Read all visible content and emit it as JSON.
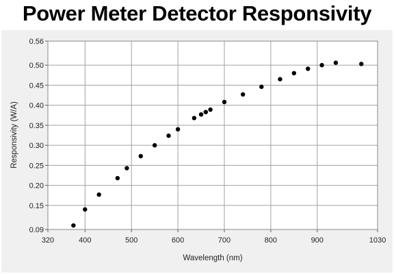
{
  "chart_data": {
    "type": "scatter",
    "title": "Power Meter Detector Responsivity",
    "xlabel": "Wavelength (nm)",
    "ylabel": "Responsivity (W/A)",
    "xlim": [
      320,
      1030
    ],
    "ylim": [
      0.09,
      0.56
    ],
    "xticks": [
      320,
      400,
      500,
      600,
      700,
      800,
      900,
      1030
    ],
    "yticks": [
      0.09,
      0.15,
      0.2,
      0.25,
      0.3,
      0.35,
      0.4,
      0.45,
      0.5,
      0.56
    ],
    "ytick_labels": [
      "0.09",
      "0.15",
      "0.20",
      "0.25",
      "0.30",
      "0.35",
      "0.40",
      "0.45",
      "0.50",
      "0.56"
    ],
    "grid": true,
    "colors": {
      "points": "#000000",
      "grid": "#a0a0a0",
      "panel": "#f0f0f0",
      "plot_bg": "#ffffff"
    },
    "points": [
      {
        "x": 375,
        "y": 0.1
      },
      {
        "x": 400,
        "y": 0.14
      },
      {
        "x": 430,
        "y": 0.177
      },
      {
        "x": 470,
        "y": 0.218
      },
      {
        "x": 490,
        "y": 0.243
      },
      {
        "x": 520,
        "y": 0.273
      },
      {
        "x": 550,
        "y": 0.3
      },
      {
        "x": 580,
        "y": 0.324
      },
      {
        "x": 600,
        "y": 0.34
      },
      {
        "x": 635,
        "y": 0.368
      },
      {
        "x": 650,
        "y": 0.377
      },
      {
        "x": 660,
        "y": 0.383
      },
      {
        "x": 670,
        "y": 0.389
      },
      {
        "x": 700,
        "y": 0.408
      },
      {
        "x": 740,
        "y": 0.427
      },
      {
        "x": 780,
        "y": 0.446
      },
      {
        "x": 820,
        "y": 0.465
      },
      {
        "x": 850,
        "y": 0.48
      },
      {
        "x": 880,
        "y": 0.491
      },
      {
        "x": 910,
        "y": 0.5
      },
      {
        "x": 940,
        "y": 0.506
      },
      {
        "x": 995,
        "y": 0.503
      }
    ]
  }
}
